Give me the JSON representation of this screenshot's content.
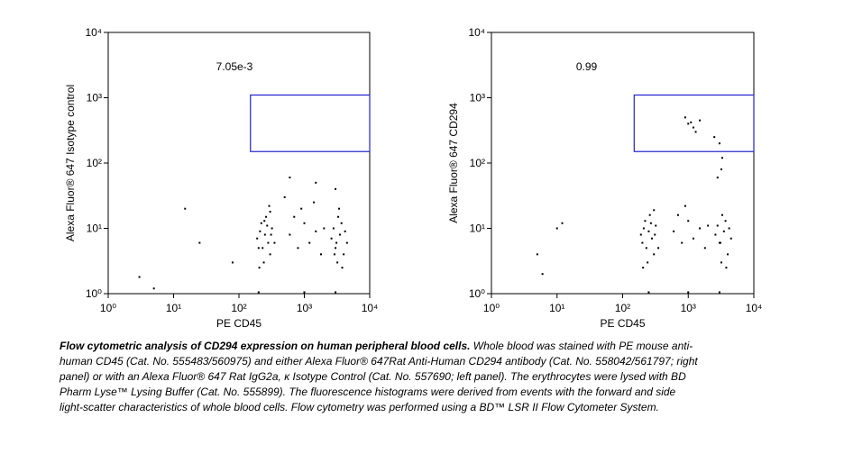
{
  "chart_data": [
    {
      "type": "scatter",
      "xlabel": "PE CD45",
      "ylabel": "Alexa Fluor® 647 Isotype control",
      "xscale": "log",
      "yscale": "log",
      "xlim": [
        1,
        10000
      ],
      "ylim": [
        1,
        10000
      ],
      "xticks": [
        {
          "value": 1,
          "label": "10⁰"
        },
        {
          "value": 10,
          "label": "10¹"
        },
        {
          "value": 100,
          "label": "10²"
        },
        {
          "value": 1000,
          "label": "10³"
        },
        {
          "value": 10000,
          "label": "10⁴"
        }
      ],
      "yticks": [
        {
          "value": 1,
          "label": "10⁰"
        },
        {
          "value": 10,
          "label": "10¹"
        },
        {
          "value": 100,
          "label": "10²"
        },
        {
          "value": 1000,
          "label": "10³"
        },
        {
          "value": 10000,
          "label": "10⁴"
        }
      ],
      "color": "#000000",
      "gate": {
        "x0": 150,
        "x1": 10000,
        "y0": 150,
        "y1": 1100,
        "color": "#2222cc",
        "annotation": "7.05e-3"
      },
      "x": [
        200,
        250,
        300,
        220,
        280,
        320,
        190,
        260,
        240,
        300,
        210,
        350,
        270,
        230,
        310,
        205,
        290,
        245,
        3000,
        3500,
        4000,
        2800,
        3200,
        4500,
        3700,
        2600,
        3300,
        4200,
        3800,
        3100,
        3400,
        2900,
        600,
        800,
        1000,
        1200,
        1500,
        700,
        1800,
        900,
        2000,
        500,
        1400,
        3,
        15,
        25,
        5,
        80,
        600,
        1500,
        3000,
        200,
        1000,
        3000
      ],
      "values": [
        5,
        8,
        4,
        12,
        6,
        10,
        7,
        15,
        3,
        18,
        9,
        6,
        11,
        5,
        8,
        2.5,
        22,
        13,
        5,
        8,
        4,
        10,
        3,
        6,
        12,
        7,
        15,
        9,
        2.5,
        6,
        20,
        4,
        8,
        5,
        12,
        6,
        9,
        15,
        4,
        20,
        10,
        30,
        25,
        1.8,
        20,
        6,
        1.2,
        3,
        60,
        50,
        40,
        1.05,
        1.05,
        1.05
      ]
    },
    {
      "type": "scatter",
      "xlabel": "PE CD45",
      "ylabel": "Alexa Fluor® 647 CD294",
      "xscale": "log",
      "yscale": "log",
      "xlim": [
        1,
        10000
      ],
      "ylim": [
        1,
        10000
      ],
      "xticks": [
        {
          "value": 1,
          "label": "10⁰"
        },
        {
          "value": 10,
          "label": "10¹"
        },
        {
          "value": 100,
          "label": "10²"
        },
        {
          "value": 1000,
          "label": "10³"
        },
        {
          "value": 10000,
          "label": "10⁴"
        }
      ],
      "yticks": [
        {
          "value": 1,
          "label": "10⁰"
        },
        {
          "value": 10,
          "label": "10¹"
        },
        {
          "value": 100,
          "label": "10²"
        },
        {
          "value": 1000,
          "label": "10³"
        },
        {
          "value": 10000,
          "label": "10⁴"
        }
      ],
      "color": "#000000",
      "gate": {
        "x0": 150,
        "x1": 10000,
        "y0": 150,
        "y1": 1100,
        "color": "#2222cc",
        "annotation": "0.99"
      },
      "x": [
        200,
        250,
        300,
        220,
        280,
        320,
        190,
        260,
        240,
        300,
        210,
        350,
        270,
        230,
        310,
        205,
        3000,
        3500,
        4000,
        2800,
        3200,
        4500,
        3700,
        2600,
        3300,
        4200,
        3800,
        3100,
        600,
        800,
        1000,
        1200,
        1500,
        700,
        1800,
        900,
        2000,
        1000,
        1200,
        1500,
        1300,
        900,
        1100,
        2500,
        3000,
        2800,
        3200,
        3300,
        10,
        5,
        12,
        6,
        250,
        1000,
        3000
      ],
      "values": [
        6,
        9,
        4,
        13,
        7,
        11,
        8,
        16,
        3,
        19,
        10,
        5,
        12,
        5,
        8,
        2.5,
        6,
        9,
        4,
        11,
        3,
        7,
        13,
        8,
        16,
        10,
        2.5,
        6,
        9,
        6,
        13,
        7,
        10,
        16,
        5,
        22,
        11,
        400,
        350,
        450,
        300,
        500,
        420,
        250,
        200,
        60,
        80,
        120,
        10,
        4,
        12,
        2,
        1.05,
        1.05,
        1.05
      ]
    }
  ],
  "caption": {
    "lead": "Flow cytometric analysis of CD294 expression on human peripheral blood cells.",
    "text": " Whole blood was stained with PE mouse anti-human CD45 (Cat. No. 555483/560975) and either Alexa Fluor® 647Rat Anti-Human CD294 antibody (Cat. No. 558042/561797; right panel) or with an Alexa Fluor® 647 Rat IgG2a, κ Isotype Control (Cat. No. 557690; left panel). The erythrocytes were lysed with BD Pharm Lyse™ Lysing Buffer (Cat. No. 555899). The fluorescence histograms were derived from events with the forward and side light-scatter characteristics of whole blood cells. Flow cytometry was performed using a BD™ LSR II Flow Cytometer System."
  }
}
